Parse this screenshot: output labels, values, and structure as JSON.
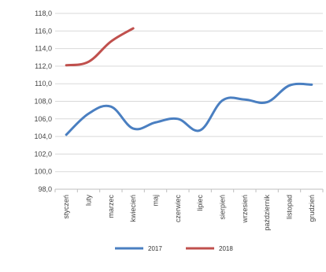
{
  "chart_data": {
    "type": "line",
    "categories": [
      "styczeń",
      "luty",
      "marzec",
      "kwiecień",
      "maj",
      "czerwiec",
      "lipiec",
      "sierpień",
      "wrzesień",
      "październik",
      "listopad",
      "grudzień"
    ],
    "ylim": [
      98.0,
      118.0
    ],
    "yticks": [
      "98,0",
      "100,0",
      "102,0",
      "104,0",
      "106,0",
      "108,0",
      "110,0",
      "112,0",
      "114,0",
      "116,0",
      "118,0"
    ],
    "grid": true,
    "legend_position": "bottom",
    "series": [
      {
        "name": "2017",
        "color": "#4a7fc1",
        "values": [
          104.2,
          106.6,
          107.4,
          104.9,
          105.6,
          106.0,
          104.7,
          108.1,
          108.2,
          107.9,
          109.8,
          109.9
        ]
      },
      {
        "name": "2018",
        "color": "#c0504d",
        "values": [
          112.1,
          112.5,
          114.8,
          116.3,
          null,
          null,
          null,
          null,
          null,
          null,
          null,
          null
        ]
      }
    ]
  }
}
